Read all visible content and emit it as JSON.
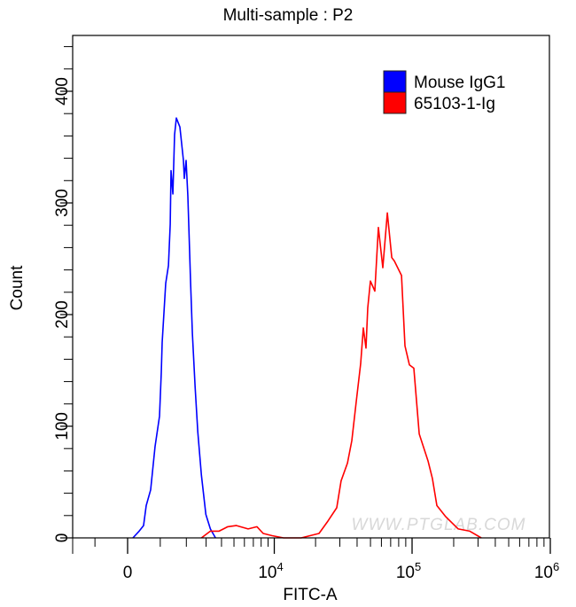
{
  "chart_data": {
    "type": "line",
    "title": "Multi-sample : P2",
    "xlabel": "FITC-A",
    "ylabel": "Count",
    "x_scale": "biexponential",
    "xlim": [
      -1840,
      1000000
    ],
    "ylim": [
      0,
      450
    ],
    "grid": false,
    "legend_placement": "top-right",
    "x_ticks": [
      {
        "value": 0,
        "base": "0",
        "exp": ""
      },
      {
        "value": 10000,
        "base": "10",
        "exp": "4"
      },
      {
        "value": 100000,
        "base": "10",
        "exp": "5"
      },
      {
        "value": 1000000,
        "base": "10",
        "exp": "6"
      }
    ],
    "x_minor_ticks": [
      -1000,
      1000,
      2000,
      3000,
      4000,
      5000,
      6000,
      7000,
      8000,
      9000,
      20000,
      30000,
      40000,
      50000,
      60000,
      70000,
      80000,
      90000,
      200000,
      300000,
      400000,
      500000,
      600000,
      700000,
      800000,
      900000
    ],
    "y_ticks": [
      0,
      100,
      200,
      300,
      400
    ],
    "y_minor_step": 20,
    "watermark": "WWW.PTGLAB.COM",
    "series": [
      {
        "name": "Mouse IgG1",
        "color": "#0000ff",
        "points": [
          [
            155,
            0
          ],
          [
            338,
            6
          ],
          [
            471,
            11
          ],
          [
            552,
            29
          ],
          [
            688,
            43
          ],
          [
            830,
            82
          ],
          [
            974,
            109
          ],
          [
            1035,
            148
          ],
          [
            1065,
            175
          ],
          [
            1189,
            228
          ],
          [
            1284,
            244
          ],
          [
            1349,
            281
          ],
          [
            1381,
            329
          ],
          [
            1448,
            308
          ],
          [
            1513,
            361
          ],
          [
            1583,
            376
          ],
          [
            1725,
            368
          ],
          [
            1872,
            338
          ],
          [
            1910,
            322
          ],
          [
            1987,
            338
          ],
          [
            2068,
            306
          ],
          [
            2192,
            228
          ],
          [
            2276,
            183
          ],
          [
            2411,
            135
          ],
          [
            2548,
            95
          ],
          [
            2737,
            56
          ],
          [
            2987,
            21
          ],
          [
            3252,
            8
          ],
          [
            3586,
            0
          ]
        ]
      },
      {
        "name": "65103-1-Ig",
        "color": "#ff0000",
        "points": [
          [
            2737,
            0
          ],
          [
            3252,
            6
          ],
          [
            3824,
            6
          ],
          [
            4479,
            10
          ],
          [
            5218,
            11
          ],
          [
            6398,
            8
          ],
          [
            7456,
            10
          ],
          [
            8283,
            4
          ],
          [
            9631,
            2
          ],
          [
            11700,
            0
          ],
          [
            15740,
            0
          ],
          [
            21190,
            4
          ],
          [
            24580,
            15
          ],
          [
            28490,
            27
          ],
          [
            30650,
            51
          ],
          [
            34060,
            67
          ],
          [
            36630,
            87
          ],
          [
            39430,
            122
          ],
          [
            42480,
            156
          ],
          [
            44390,
            188
          ],
          [
            46380,
            170
          ],
          [
            47780,
            206
          ],
          [
            49920,
            230
          ],
          [
            53770,
            221
          ],
          [
            57080,
            278
          ],
          [
            61460,
            242
          ],
          [
            66190,
            291
          ],
          [
            71270,
            251
          ],
          [
            74420,
            248
          ],
          [
            83870,
            235
          ],
          [
            88780,
            172
          ],
          [
            95600,
            155
          ],
          [
            103000,
            152
          ],
          [
            112600,
            93
          ],
          [
            130500,
            69
          ],
          [
            140400,
            53
          ],
          [
            151100,
            29
          ],
          [
            175300,
            19
          ],
          [
            215600,
            8
          ],
          [
            261400,
            6
          ],
          [
            316800,
            0
          ]
        ]
      }
    ]
  }
}
